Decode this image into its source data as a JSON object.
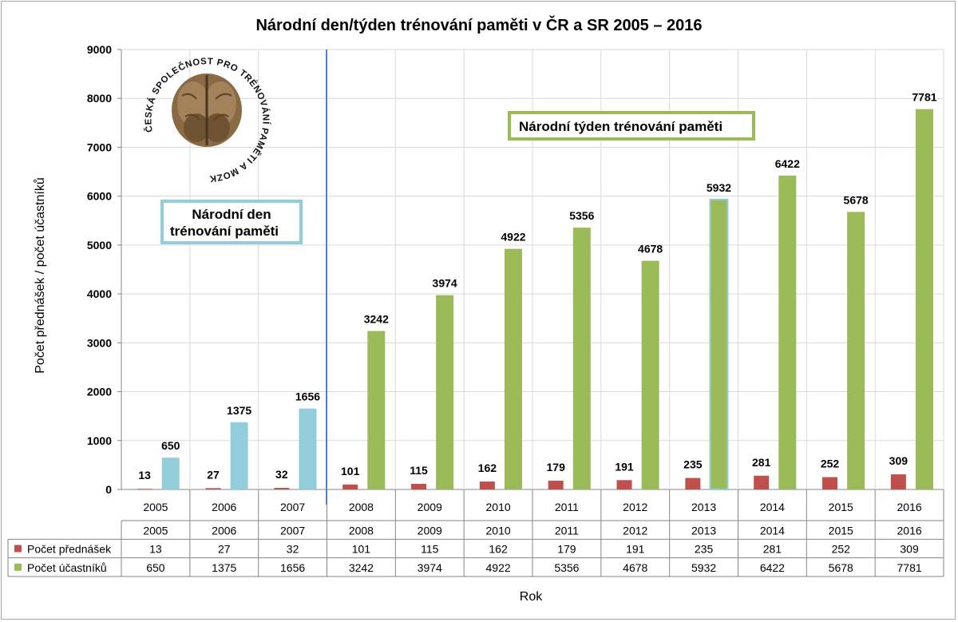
{
  "chart_data": {
    "type": "bar",
    "title": "Národní den/týden trénování paměti v ČR a SR 2005 – 2016",
    "xlabel": "Rok",
    "ylabel": "Počet přednášek / počet účastníků",
    "ylim": [
      0,
      9000
    ],
    "y_ticks": [
      "0",
      "1000",
      "2000",
      "3000",
      "4000",
      "5000",
      "6000",
      "7000",
      "8000",
      "9000"
    ],
    "grid": true,
    "categories": [
      "2005",
      "2006",
      "2007",
      "2008",
      "2009",
      "2010",
      "2011",
      "2012",
      "2013",
      "2014",
      "2015",
      "2016"
    ],
    "series": [
      {
        "name": "Počet přednášek",
        "color": "#c0504d",
        "values": [
          13,
          27,
          32,
          101,
          115,
          162,
          179,
          191,
          235,
          281,
          252,
          309
        ]
      },
      {
        "name": "Počet účastníků",
        "values": [
          650,
          1375,
          1656,
          3242,
          3974,
          4922,
          5356,
          4678,
          5932,
          6422,
          5678,
          7781
        ],
        "point_colors": [
          "#92cddc",
          "#92cddc",
          "#92cddc",
          "#9bbb59",
          "#9bbb59",
          "#9bbb59",
          "#9bbb59",
          "#9bbb59",
          "#9bbb59",
          "#9bbb59",
          "#9bbb59",
          "#9bbb59"
        ]
      }
    ],
    "legend": "data-table"
  },
  "annotations": {
    "day_label": "Národní den trénování paměti",
    "day_label_line1": "Národní den",
    "day_label_line2": "trénování paměti",
    "week_label": "Národní týden trénování paměti",
    "divider_color": "#4f81bd",
    "day_color": "#92cddc",
    "week_color": "#9bbb59"
  },
  "logo": {
    "text": "ČESKÁ SPOLEČNOST PRO TRÉNOVÁNÍ PAMĚTI A MOZKOVÝ JOGGING •",
    "icon": "walnut-brain-icon"
  }
}
